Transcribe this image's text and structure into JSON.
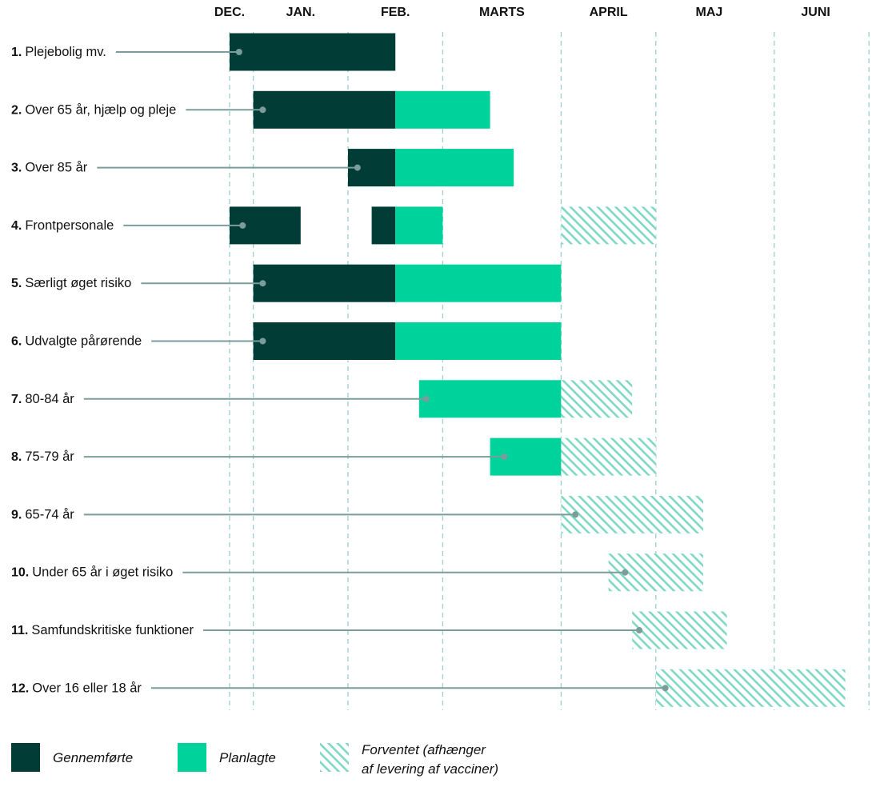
{
  "chart_data": {
    "type": "gantt",
    "title": "",
    "colors": {
      "completed": "#013d36",
      "planned": "#00d29b",
      "expected": "#7fd8c2",
      "connector": "#7a9d9b",
      "gridline": "#9ccfc8",
      "text": "#111111"
    },
    "months": [
      {
        "label": "DEC.",
        "week": 0
      },
      {
        "label": "JAN.",
        "week": 3
      },
      {
        "label": "FEB.",
        "week": 7
      },
      {
        "label": "MARTS",
        "week": 11.5
      },
      {
        "label": "APRIL",
        "week": 16
      },
      {
        "label": "MAJ",
        "week": 20.25
      },
      {
        "label": "JUNI",
        "week": 24.75
      }
    ],
    "gridlines": [
      0,
      1,
      5,
      9,
      14,
      18,
      23,
      27
    ],
    "rows": [
      {
        "num": "1.",
        "label": "Plejebolig mv.",
        "marker": 0.4,
        "segments": [
          {
            "kind": "completed",
            "start": 0,
            "end": 7
          }
        ]
      },
      {
        "num": "2.",
        "label": "Over 65 år, hjælp og pleje",
        "marker": 1.4,
        "segments": [
          {
            "kind": "completed",
            "start": 1,
            "end": 7
          },
          {
            "kind": "planned",
            "start": 7,
            "end": 11
          }
        ]
      },
      {
        "num": "3.",
        "label": "Over 85 år",
        "marker": 5.4,
        "segments": [
          {
            "kind": "completed",
            "start": 5,
            "end": 7
          },
          {
            "kind": "planned",
            "start": 7,
            "end": 12
          }
        ]
      },
      {
        "num": "4.",
        "label": "Frontpersonale",
        "marker": 0.55,
        "segments": [
          {
            "kind": "completed",
            "start": 0,
            "end": 3
          },
          {
            "kind": "completed",
            "start": 6,
            "end": 7
          },
          {
            "kind": "planned",
            "start": 7,
            "end": 9
          },
          {
            "kind": "expected",
            "start": 14,
            "end": 18
          }
        ]
      },
      {
        "num": "5.",
        "label": "Særligt øget risiko",
        "marker": 1.4,
        "segments": [
          {
            "kind": "completed",
            "start": 1,
            "end": 7
          },
          {
            "kind": "planned",
            "start": 7,
            "end": 14
          }
        ]
      },
      {
        "num": "6.",
        "label": "Udvalgte pårørende",
        "marker": 1.4,
        "segments": [
          {
            "kind": "completed",
            "start": 1,
            "end": 7
          },
          {
            "kind": "planned",
            "start": 7,
            "end": 14
          }
        ]
      },
      {
        "num": "7.",
        "label": "80-84 år",
        "marker": 8.3,
        "segments": [
          {
            "kind": "planned",
            "start": 8,
            "end": 14
          },
          {
            "kind": "expected",
            "start": 14,
            "end": 17
          }
        ]
      },
      {
        "num": "8.",
        "label": "75-79 år",
        "marker": 11.6,
        "segments": [
          {
            "kind": "planned",
            "start": 11,
            "end": 14
          },
          {
            "kind": "expected",
            "start": 14,
            "end": 18
          }
        ]
      },
      {
        "num": "9.",
        "label": "65-74 år",
        "marker": 14.6,
        "segments": [
          {
            "kind": "expected",
            "start": 14,
            "end": 20
          }
        ]
      },
      {
        "num": "10.",
        "label": "Under 65 år i øget risiko",
        "marker": 16.7,
        "segments": [
          {
            "kind": "expected",
            "start": 16,
            "end": 20
          }
        ]
      },
      {
        "num": "11.",
        "label": "Samfundskritiske funktioner",
        "marker": 17.3,
        "segments": [
          {
            "kind": "expected",
            "start": 17,
            "end": 21
          }
        ]
      },
      {
        "num": "12.",
        "label": "Over 16 eller 18 år",
        "marker": 18.4,
        "segments": [
          {
            "kind": "expected",
            "start": 18,
            "end": 26
          }
        ]
      }
    ],
    "legend": [
      {
        "kind": "completed",
        "lines": [
          "Gennemførte"
        ]
      },
      {
        "kind": "planned",
        "lines": [
          "Planlagte"
        ]
      },
      {
        "kind": "expected",
        "lines": [
          "Forventet (afhænger",
          "af levering af vacciner)"
        ]
      }
    ]
  }
}
